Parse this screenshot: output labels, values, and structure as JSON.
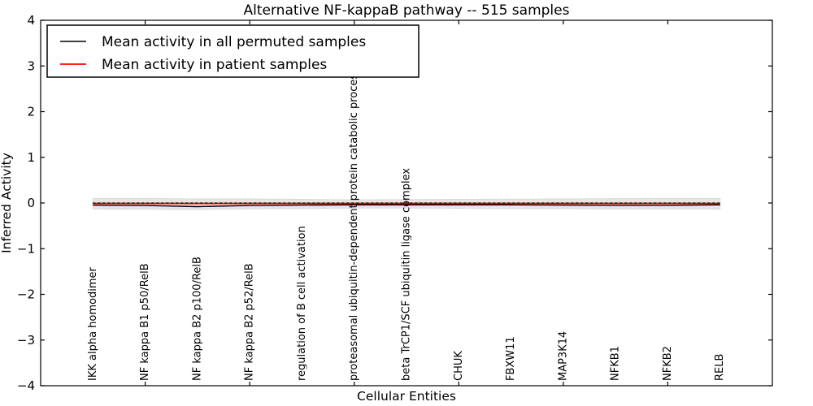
{
  "chart_data": {
    "type": "line",
    "title": "Alternative NF-kappaB pathway -- 515 samples",
    "xlabel": "Cellular Entities",
    "ylabel": "Inferred Activity",
    "ylim": [
      -4,
      4
    ],
    "yticks": [
      4,
      3,
      2,
      1,
      0,
      -1,
      -2,
      -3,
      -4
    ],
    "x_minor_tick_units": [
      2,
      4,
      6,
      8,
      10,
      12
    ],
    "x_units_range": [
      0,
      14
    ],
    "grid": false,
    "legend_position": "upper left",
    "categories": [
      "IKK alpha homodimer",
      "NF kappa B1 p50/RelB",
      "NF kappa B2 p100/RelB",
      "NF kappa B2 p52/RelB",
      "regulation of B cell activation",
      "proteasomal ubiquitin-dependent protein catabolic process",
      "beta TrCP1/SCF ubiquitin ligase complex",
      "CHUK",
      "FBXW11",
      "MAP3K14",
      "NFKB1",
      "NFKB2",
      "RELB"
    ],
    "series": [
      {
        "name": "Mean activity in all permuted samples",
        "color": "#000000",
        "line_style": "solid",
        "values": [
          -0.045,
          -0.055,
          -0.08,
          -0.055,
          -0.045,
          -0.04,
          -0.04,
          -0.04,
          -0.04,
          -0.045,
          -0.05,
          -0.05,
          -0.04
        ]
      },
      {
        "name": "Mean activity in patient samples",
        "color": "#ff0000",
        "line_style": "solid",
        "values": [
          -0.01,
          -0.01,
          -0.01,
          -0.01,
          -0.01,
          -0.01,
          -0.01,
          -0.01,
          -0.01,
          -0.01,
          -0.01,
          -0.01,
          -0.01
        ]
      }
    ],
    "reference_line": {
      "y": 0,
      "color": "#000000",
      "style": "dashed"
    },
    "permuted_band": {
      "color": "#e6e6e6",
      "edge_color": "#d9d9d9",
      "top": [
        0.1,
        0.1,
        0.09,
        0.09,
        0.08,
        0.07,
        0.075,
        0.08,
        0.085,
        0.09,
        0.095,
        0.1,
        0.1
      ],
      "bottom": [
        -0.13,
        -0.135,
        -0.14,
        -0.13,
        -0.12,
        -0.11,
        -0.11,
        -0.115,
        -0.12,
        -0.125,
        -0.13,
        -0.13,
        -0.13
      ]
    }
  }
}
